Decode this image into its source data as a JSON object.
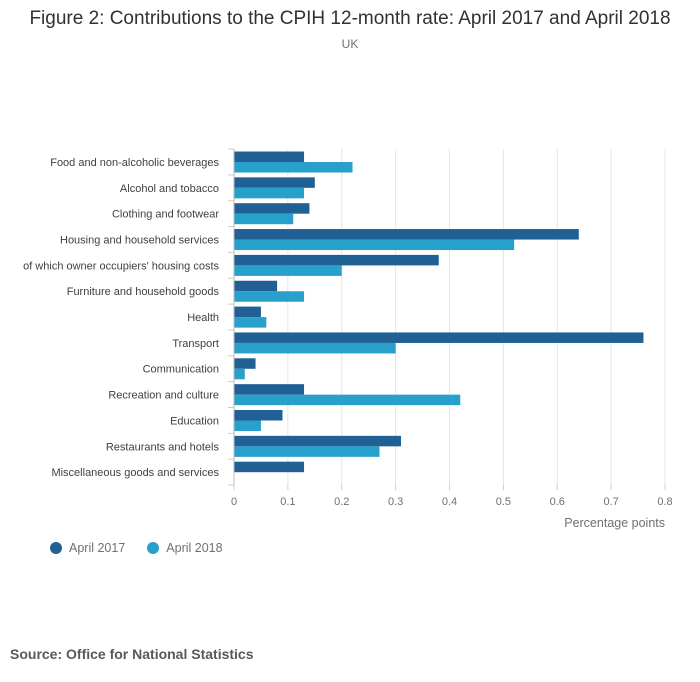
{
  "chart_data": {
    "type": "bar",
    "orientation": "horizontal",
    "title": "Figure 2: Contributions to the CPIH 12-month rate: April 2017 and April 2018",
    "subtitle": "UK",
    "xlabel": "Percentage points",
    "xlim": [
      0,
      0.8
    ],
    "xticks": [
      "0",
      "0.1",
      "0.2",
      "0.3",
      "0.4",
      "0.5",
      "0.6",
      "0.7",
      "0.8"
    ],
    "grid": true,
    "legend_position": "bottom-left",
    "categories": [
      "Food and non-alcoholic beverages",
      "Alcohol and tobacco",
      "Clothing and footwear",
      "Housing and household services",
      "of which owner occupiers' housing costs",
      "Furniture and household goods",
      "Health",
      "Transport",
      "Communication",
      "Recreation and culture",
      "Education",
      "Restaurants and hotels",
      "Miscellaneous goods and services"
    ],
    "series": [
      {
        "name": "April 2017",
        "color": "#206095",
        "values": [
          0.13,
          0.15,
          0.14,
          0.64,
          0.38,
          0.08,
          0.05,
          0.76,
          0.04,
          0.13,
          0.09,
          0.31,
          0.13
        ]
      },
      {
        "name": "April 2018",
        "color": "#27a0cc",
        "values": [
          0.22,
          0.13,
          0.11,
          0.52,
          0.2,
          0.13,
          0.06,
          0.3,
          0.02,
          0.42,
          0.05,
          0.27,
          0.0
        ]
      }
    ]
  },
  "source": "Source: Office for National Statistics"
}
